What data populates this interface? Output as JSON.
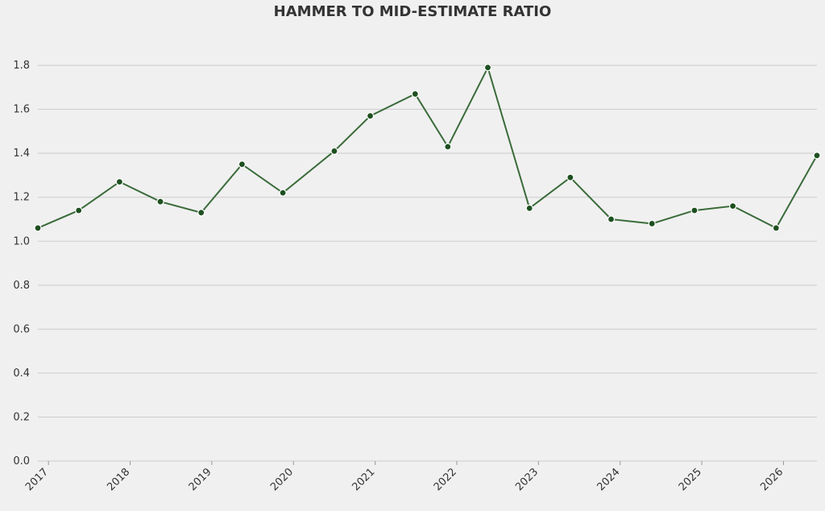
{
  "chart_data": {
    "type": "line",
    "title": "HAMMER TO MID-ESTIMATE RATIO",
    "x": [
      2016.87,
      2017.37,
      2017.87,
      2018.37,
      2018.87,
      2019.37,
      2019.87,
      2020.5,
      2020.94,
      2021.49,
      2021.89,
      2022.38,
      2022.89,
      2023.39,
      2023.89,
      2024.39,
      2024.91,
      2025.38,
      2025.91,
      2026.41
    ],
    "series": [
      {
        "name": "Hammer to mid-estimate ratio",
        "color": "#3a6b3a",
        "values": [
          1.06,
          1.14,
          1.27,
          1.18,
          1.13,
          1.35,
          1.22,
          1.41,
          1.57,
          1.67,
          1.43,
          1.79,
          1.15,
          1.29,
          1.1,
          1.08,
          1.14,
          1.16,
          1.06,
          1.39
        ]
      }
    ],
    "marker_color": "#1e5020",
    "xlim": [
      2016.87,
      2026.41
    ],
    "xticks": [
      2017,
      2018,
      2019,
      2020,
      2021,
      2022,
      2023,
      2024,
      2025,
      2026
    ],
    "ylim": [
      0,
      1.87
    ],
    "yticks": [
      {
        "value": 0,
        "label": "0.0"
      },
      0.2,
      0.4,
      0.6,
      0.8,
      {
        "value": 1,
        "label": "1.0"
      },
      1.2,
      1.4,
      1.6,
      1.8
    ],
    "grid": true
  }
}
